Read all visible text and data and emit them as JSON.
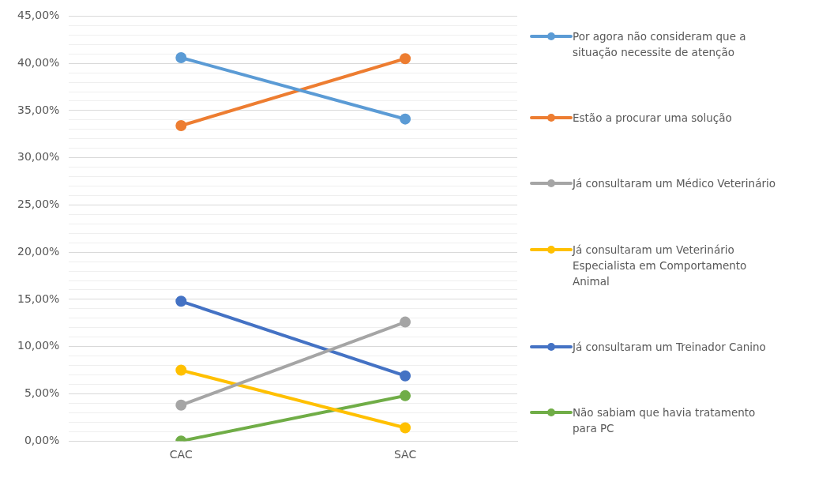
{
  "chart_data": {
    "type": "line",
    "categories": [
      "CAC",
      "SAC"
    ],
    "series": [
      {
        "name": "Por agora não consideram que a situação necessite de atenção",
        "color": "#5b9bd5",
        "values": [
          40.6,
          34.1
        ]
      },
      {
        "name": "Estão a procurar uma solução",
        "color": "#ed7d31",
        "values": [
          33.4,
          40.5
        ]
      },
      {
        "name": "Já consultaram um Médico Veterinário",
        "color": "#a5a5a5",
        "values": [
          3.8,
          12.6
        ]
      },
      {
        "name": "Já consultaram um Veterinário Especialista em Comportamento Animal",
        "color": "#ffc000",
        "values": [
          7.5,
          1.4
        ]
      },
      {
        "name": "Já consultaram um Treinador Canino",
        "color": "#4472c4",
        "values": [
          14.8,
          6.9
        ]
      },
      {
        "name": "Não sabiam que havia tratamento para PC",
        "color": "#70ad47",
        "values": [
          0,
          4.8
        ]
      }
    ],
    "ylim": [
      0,
      45
    ],
    "yticks": [
      {
        "value": 0,
        "label": "0,00%"
      },
      {
        "value": 1,
        "label": null
      },
      {
        "value": 2,
        "label": null
      },
      {
        "value": 3,
        "label": null
      },
      {
        "value": 4,
        "label": null
      },
      {
        "value": 5,
        "label": "5,00%"
      },
      {
        "value": 6,
        "label": null
      },
      {
        "value": 7,
        "label": null
      },
      {
        "value": 8,
        "label": null
      },
      {
        "value": 9,
        "label": null
      },
      {
        "value": 10,
        "label": "10,00%"
      },
      {
        "value": 11,
        "label": null
      },
      {
        "value": 12,
        "label": null
      },
      {
        "value": 13,
        "label": null
      },
      {
        "value": 14,
        "label": null
      },
      {
        "value": 15,
        "label": "15,00%"
      },
      {
        "value": 16,
        "label": null
      },
      {
        "value": 17,
        "label": null
      },
      {
        "value": 18,
        "label": null
      },
      {
        "value": 19,
        "label": null
      },
      {
        "value": 20,
        "label": "20,00%"
      },
      {
        "value": 21,
        "label": null
      },
      {
        "value": 22,
        "label": null
      },
      {
        "value": 23,
        "label": null
      },
      {
        "value": 24,
        "label": null
      },
      {
        "value": 25,
        "label": "25,00%"
      },
      {
        "value": 26,
        "label": null
      },
      {
        "value": 27,
        "label": null
      },
      {
        "value": 28,
        "label": null
      },
      {
        "value": 29,
        "label": null
      },
      {
        "value": 30,
        "label": "30,00%"
      },
      {
        "value": 31,
        "label": null
      },
      {
        "value": 32,
        "label": null
      },
      {
        "value": 33,
        "label": null
      },
      {
        "value": 34,
        "label": null
      },
      {
        "value": 35,
        "label": "35,00%"
      },
      {
        "value": 36,
        "label": null
      },
      {
        "value": 37,
        "label": null
      },
      {
        "value": 38,
        "label": null
      },
      {
        "value": 39,
        "label": null
      },
      {
        "value": 40,
        "label": "40,00%"
      },
      {
        "value": 41,
        "label": null
      },
      {
        "value": 42,
        "label": null
      },
      {
        "value": 43,
        "label": null
      },
      {
        "value": 44,
        "label": null
      },
      {
        "value": 45,
        "label": "45,00%"
      }
    ],
    "grid": "y",
    "legend": "right",
    "marker": "circle",
    "line_style": "solid"
  }
}
